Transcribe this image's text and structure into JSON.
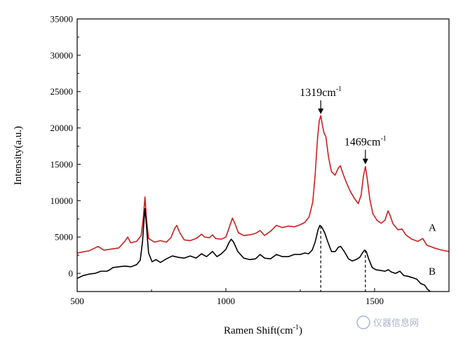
{
  "chart_data": {
    "type": "line",
    "title": "",
    "xlabel": "Ramen Shift(cm",
    "xlabel_sup": "-1",
    "xlabel_tail": ")",
    "ylabel": "Intensity(a.u.)",
    "xlim": [
      500,
      1750
    ],
    "ylim": [
      -2500,
      35000
    ],
    "x_ticks": [
      500,
      1000,
      1500
    ],
    "x_tick_labels": [
      "500",
      "1000",
      "1500"
    ],
    "y_ticks": [
      0,
      5000,
      10000,
      15000,
      20000,
      25000,
      30000,
      35000
    ],
    "y_tick_labels": [
      "0",
      "5000",
      "10000",
      "15000",
      "20000",
      "25000",
      "30000",
      "35000"
    ],
    "grid": false,
    "series": [
      {
        "name": "A",
        "color": "#c8201e",
        "points": [
          [
            500,
            2800
          ],
          [
            540,
            3100
          ],
          [
            560,
            3500
          ],
          [
            570,
            3700
          ],
          [
            590,
            3200
          ],
          [
            640,
            3500
          ],
          [
            660,
            4400
          ],
          [
            670,
            5000
          ],
          [
            680,
            4200
          ],
          [
            700,
            4400
          ],
          [
            715,
            5200
          ],
          [
            722,
            7500
          ],
          [
            728,
            10500
          ],
          [
            733,
            7500
          ],
          [
            740,
            4800
          ],
          [
            760,
            4300
          ],
          [
            780,
            4500
          ],
          [
            800,
            4300
          ],
          [
            815,
            4900
          ],
          [
            828,
            6200
          ],
          [
            835,
            6600
          ],
          [
            845,
            5600
          ],
          [
            860,
            4600
          ],
          [
            880,
            4500
          ],
          [
            900,
            4800
          ],
          [
            910,
            5100
          ],
          [
            918,
            5400
          ],
          [
            928,
            5000
          ],
          [
            945,
            4900
          ],
          [
            955,
            5300
          ],
          [
            965,
            4800
          ],
          [
            985,
            4700
          ],
          [
            1000,
            5000
          ],
          [
            1012,
            6400
          ],
          [
            1022,
            7600
          ],
          [
            1030,
            6900
          ],
          [
            1042,
            5600
          ],
          [
            1060,
            5200
          ],
          [
            1080,
            5300
          ],
          [
            1100,
            5500
          ],
          [
            1115,
            5900
          ],
          [
            1130,
            5200
          ],
          [
            1150,
            5800
          ],
          [
            1170,
            6600
          ],
          [
            1190,
            6300
          ],
          [
            1210,
            6500
          ],
          [
            1230,
            6400
          ],
          [
            1250,
            6700
          ],
          [
            1265,
            7000
          ],
          [
            1280,
            7800
          ],
          [
            1292,
            9800
          ],
          [
            1300,
            13500
          ],
          [
            1308,
            18500
          ],
          [
            1314,
            21000
          ],
          [
            1319,
            21700
          ],
          [
            1324,
            20500
          ],
          [
            1330,
            19300
          ],
          [
            1336,
            18800
          ],
          [
            1345,
            16000
          ],
          [
            1355,
            14000
          ],
          [
            1367,
            13500
          ],
          [
            1378,
            14500
          ],
          [
            1385,
            14800
          ],
          [
            1393,
            13800
          ],
          [
            1405,
            12500
          ],
          [
            1418,
            11300
          ],
          [
            1432,
            10300
          ],
          [
            1445,
            9600
          ],
          [
            1455,
            10800
          ],
          [
            1462,
            13300
          ],
          [
            1469,
            14700
          ],
          [
            1476,
            12800
          ],
          [
            1484,
            10200
          ],
          [
            1494,
            8200
          ],
          [
            1508,
            7300
          ],
          [
            1522,
            6900
          ],
          [
            1535,
            7300
          ],
          [
            1545,
            8600
          ],
          [
            1552,
            8000
          ],
          [
            1562,
            6800
          ],
          [
            1578,
            6000
          ],
          [
            1592,
            6100
          ],
          [
            1605,
            5300
          ],
          [
            1625,
            4700
          ],
          [
            1645,
            4400
          ],
          [
            1662,
            4800
          ],
          [
            1675,
            3900
          ],
          [
            1700,
            3500
          ],
          [
            1725,
            3200
          ],
          [
            1750,
            3000
          ]
        ]
      },
      {
        "name": "B",
        "color": "#000000",
        "points": [
          [
            500,
            -700
          ],
          [
            520,
            -300
          ],
          [
            540,
            -100
          ],
          [
            560,
            0
          ],
          [
            580,
            300
          ],
          [
            600,
            300
          ],
          [
            610,
            500
          ],
          [
            620,
            800
          ],
          [
            640,
            900
          ],
          [
            660,
            1000
          ],
          [
            680,
            900
          ],
          [
            700,
            1200
          ],
          [
            712,
            1800
          ],
          [
            720,
            4500
          ],
          [
            725,
            7500
          ],
          [
            728,
            8900
          ],
          [
            733,
            6500
          ],
          [
            740,
            2800
          ],
          [
            752,
            1600
          ],
          [
            765,
            1900
          ],
          [
            780,
            1500
          ],
          [
            800,
            2000
          ],
          [
            820,
            2400
          ],
          [
            840,
            2200
          ],
          [
            860,
            2100
          ],
          [
            880,
            2400
          ],
          [
            900,
            2100
          ],
          [
            918,
            2700
          ],
          [
            935,
            2300
          ],
          [
            955,
            3000
          ],
          [
            970,
            2300
          ],
          [
            985,
            2700
          ],
          [
            1000,
            3300
          ],
          [
            1010,
            4200
          ],
          [
            1018,
            4700
          ],
          [
            1026,
            4300
          ],
          [
            1040,
            3000
          ],
          [
            1060,
            2100
          ],
          [
            1080,
            1900
          ],
          [
            1100,
            2000
          ],
          [
            1115,
            2600
          ],
          [
            1130,
            2100
          ],
          [
            1150,
            2000
          ],
          [
            1170,
            2600
          ],
          [
            1190,
            2300
          ],
          [
            1210,
            2300
          ],
          [
            1230,
            2600
          ],
          [
            1250,
            2600
          ],
          [
            1265,
            2800
          ],
          [
            1278,
            2700
          ],
          [
            1290,
            3200
          ],
          [
            1300,
            4300
          ],
          [
            1310,
            6000
          ],
          [
            1316,
            6600
          ],
          [
            1322,
            6400
          ],
          [
            1332,
            5600
          ],
          [
            1342,
            4400
          ],
          [
            1355,
            3000
          ],
          [
            1368,
            3000
          ],
          [
            1378,
            3600
          ],
          [
            1386,
            3700
          ],
          [
            1398,
            3000
          ],
          [
            1412,
            2000
          ],
          [
            1425,
            1700
          ],
          [
            1438,
            1900
          ],
          [
            1450,
            2200
          ],
          [
            1459,
            2800
          ],
          [
            1466,
            3200
          ],
          [
            1472,
            3000
          ],
          [
            1480,
            2000
          ],
          [
            1492,
            800
          ],
          [
            1505,
            500
          ],
          [
            1520,
            400
          ],
          [
            1535,
            300
          ],
          [
            1546,
            500
          ],
          [
            1556,
            200
          ],
          [
            1570,
            0
          ],
          [
            1585,
            300
          ],
          [
            1598,
            -300
          ],
          [
            1612,
            -400
          ],
          [
            1628,
            -600
          ],
          [
            1642,
            -800
          ],
          [
            1655,
            -1400
          ],
          [
            1668,
            -1600
          ],
          [
            1678,
            -2200
          ],
          [
            1690,
            -2600
          ]
        ]
      }
    ],
    "annotations": [
      {
        "id": "a1319",
        "text": "1319cm",
        "sup": "-1",
        "x": 1319,
        "arrow_from": 23800,
        "arrow_to": 21900,
        "dashed_top": 6500
      },
      {
        "id": "a1469",
        "text": "1469cm",
        "sup": "-1",
        "x": 1469,
        "arrow_from": 17000,
        "arrow_to": 15000,
        "dashed_top": 3200
      }
    ],
    "series_labels": [
      {
        "id": "A",
        "text": "A",
        "y": 6300
      },
      {
        "id": "B",
        "text": "B",
        "y": 300
      }
    ]
  },
  "watermark": "仪器信息网"
}
